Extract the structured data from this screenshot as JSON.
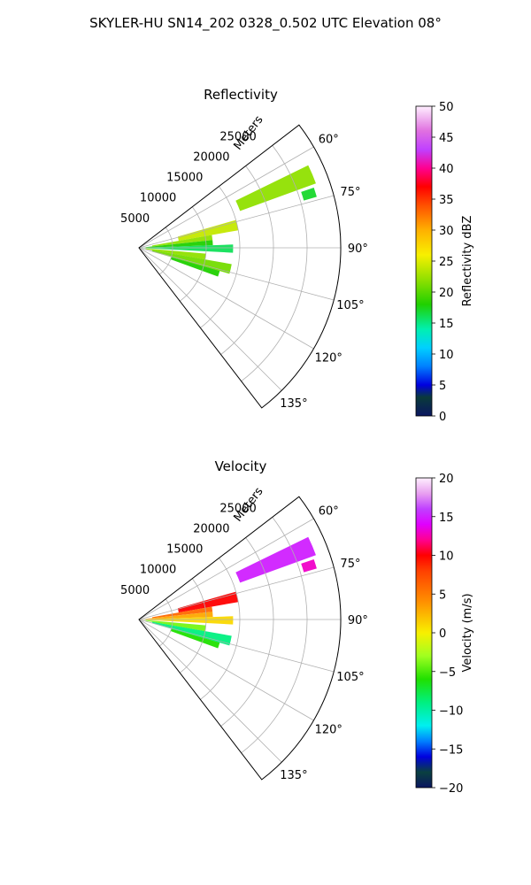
{
  "figure": {
    "title": "SKYLER-HU  SN14_202  0328_0.502 UTC Elevation 08°"
  },
  "chart_data": [
    {
      "type": "polar-sector-heatmap",
      "title": "Reflectivity",
      "range_axis_label": "Meters",
      "range_ticks": [
        "5000",
        "10000",
        "15000",
        "20000",
        "25000"
      ],
      "angle_ticks": [
        "60°",
        "75°",
        "90°",
        "105°",
        "120°",
        "135°"
      ],
      "theta_range_deg": [
        52.5,
        142.5
      ],
      "r_max_m": 30000,
      "grid": true,
      "colorbar": {
        "label": "Reflectivity dBZ",
        "ticks": [
          "0",
          "5",
          "10",
          "15",
          "20",
          "25",
          "30",
          "35",
          "40",
          "45",
          "50"
        ],
        "range": [
          0,
          50
        ],
        "stops": [
          {
            "v": 0,
            "color": "#0a1660"
          },
          {
            "v": 3,
            "color": "#0a3a3a"
          },
          {
            "v": 5,
            "color": "#0000e0"
          },
          {
            "v": 8,
            "color": "#0080ff"
          },
          {
            "v": 11,
            "color": "#00d0ff"
          },
          {
            "v": 14,
            "color": "#00f0b0"
          },
          {
            "v": 18,
            "color": "#20d000"
          },
          {
            "v": 22,
            "color": "#90e000"
          },
          {
            "v": 26,
            "color": "#f8f000"
          },
          {
            "v": 30,
            "color": "#ffb000"
          },
          {
            "v": 34,
            "color": "#ff5000"
          },
          {
            "v": 37,
            "color": "#ff0000"
          },
          {
            "v": 40,
            "color": "#ff0090"
          },
          {
            "v": 43,
            "color": "#c040ff"
          },
          {
            "v": 46,
            "color": "#e070e0"
          },
          {
            "v": 50,
            "color": "#fff0ff"
          }
        ]
      },
      "echo_bands": [
        {
          "theta_deg": [
            64,
            70
          ],
          "r_m": [
            16000,
            28000
          ],
          "value_dbz": 22
        },
        {
          "theta_deg": [
            71,
            74
          ],
          "r_m": [
            25500,
            27500
          ],
          "value_dbz": 17
        },
        {
          "theta_deg": [
            74,
            80
          ],
          "r_m": [
            6000,
            15000
          ],
          "value_dbz": 24
        },
        {
          "theta_deg": [
            80,
            84
          ],
          "r_m": [
            2000,
            11000
          ],
          "value_dbz": 22
        },
        {
          "theta_deg": [
            84,
            88
          ],
          "r_m": [
            1000,
            11000
          ],
          "value_dbz": 18
        },
        {
          "theta_deg": [
            88,
            93
          ],
          "r_m": [
            500,
            14000
          ],
          "value_dbz": 16
        },
        {
          "theta_deg": [
            95,
            100
          ],
          "r_m": [
            1000,
            10000
          ],
          "value_dbz": 22
        },
        {
          "theta_deg": [
            100,
            106
          ],
          "r_m": [
            2000,
            14000
          ],
          "value_dbz": 21
        },
        {
          "theta_deg": [
            106,
            110
          ],
          "r_m": [
            5000,
            12500
          ],
          "value_dbz": 18
        }
      ]
    },
    {
      "type": "polar-sector-heatmap",
      "title": "Velocity",
      "range_axis_label": "Meters",
      "range_ticks": [
        "5000",
        "10000",
        "15000",
        "20000",
        "25000"
      ],
      "angle_ticks": [
        "60°",
        "75°",
        "90°",
        "105°",
        "120°",
        "135°"
      ],
      "theta_range_deg": [
        52.5,
        142.5
      ],
      "r_max_m": 30000,
      "grid": true,
      "colorbar": {
        "label": "Velocity (m/s)",
        "ticks": [
          "−20",
          "−15",
          "−10",
          "−5",
          "0",
          "5",
          "10",
          "15",
          "20"
        ],
        "range": [
          -20,
          20
        ],
        "stops": [
          {
            "v": -20,
            "color": "#0a1660"
          },
          {
            "v": -18,
            "color": "#0a4040"
          },
          {
            "v": -16,
            "color": "#0000e0"
          },
          {
            "v": -14,
            "color": "#0080ff"
          },
          {
            "v": -12,
            "color": "#00f0f0"
          },
          {
            "v": -9,
            "color": "#00f080"
          },
          {
            "v": -6,
            "color": "#20e000"
          },
          {
            "v": -3,
            "color": "#a0ff20"
          },
          {
            "v": 0,
            "color": "#f8f000"
          },
          {
            "v": 4,
            "color": "#ff9000"
          },
          {
            "v": 8,
            "color": "#ff4000"
          },
          {
            "v": 10,
            "color": "#ff0000"
          },
          {
            "v": 12,
            "color": "#ff0090"
          },
          {
            "v": 14,
            "color": "#e000ff"
          },
          {
            "v": 16,
            "color": "#c040ff"
          },
          {
            "v": 18,
            "color": "#e8a0f0"
          },
          {
            "v": 20,
            "color": "#fff0ff"
          }
        ]
      },
      "echo_bands": [
        {
          "theta_deg": [
            64,
            70
          ],
          "r_m": [
            16000,
            28000
          ],
          "value_ms": 15
        },
        {
          "theta_deg": [
            71,
            74
          ],
          "r_m": [
            25500,
            27500
          ],
          "value_ms": 13
        },
        {
          "theta_deg": [
            74,
            80
          ],
          "r_m": [
            6000,
            15000
          ],
          "value_ms": 10
        },
        {
          "theta_deg": [
            80,
            84
          ],
          "r_m": [
            2000,
            11000
          ],
          "value_ms": 6
        },
        {
          "theta_deg": [
            84,
            88
          ],
          "r_m": [
            1000,
            11000
          ],
          "value_ms": 3
        },
        {
          "theta_deg": [
            88,
            93
          ],
          "r_m": [
            500,
            14000
          ],
          "value_ms": 1
        },
        {
          "theta_deg": [
            95,
            100
          ],
          "r_m": [
            1000,
            10000
          ],
          "value_ms": -4
        },
        {
          "theta_deg": [
            100,
            106
          ],
          "r_m": [
            2000,
            14000
          ],
          "value_ms": -9
        },
        {
          "theta_deg": [
            106,
            110
          ],
          "r_m": [
            5000,
            12500
          ],
          "value_ms": -6
        }
      ]
    }
  ]
}
